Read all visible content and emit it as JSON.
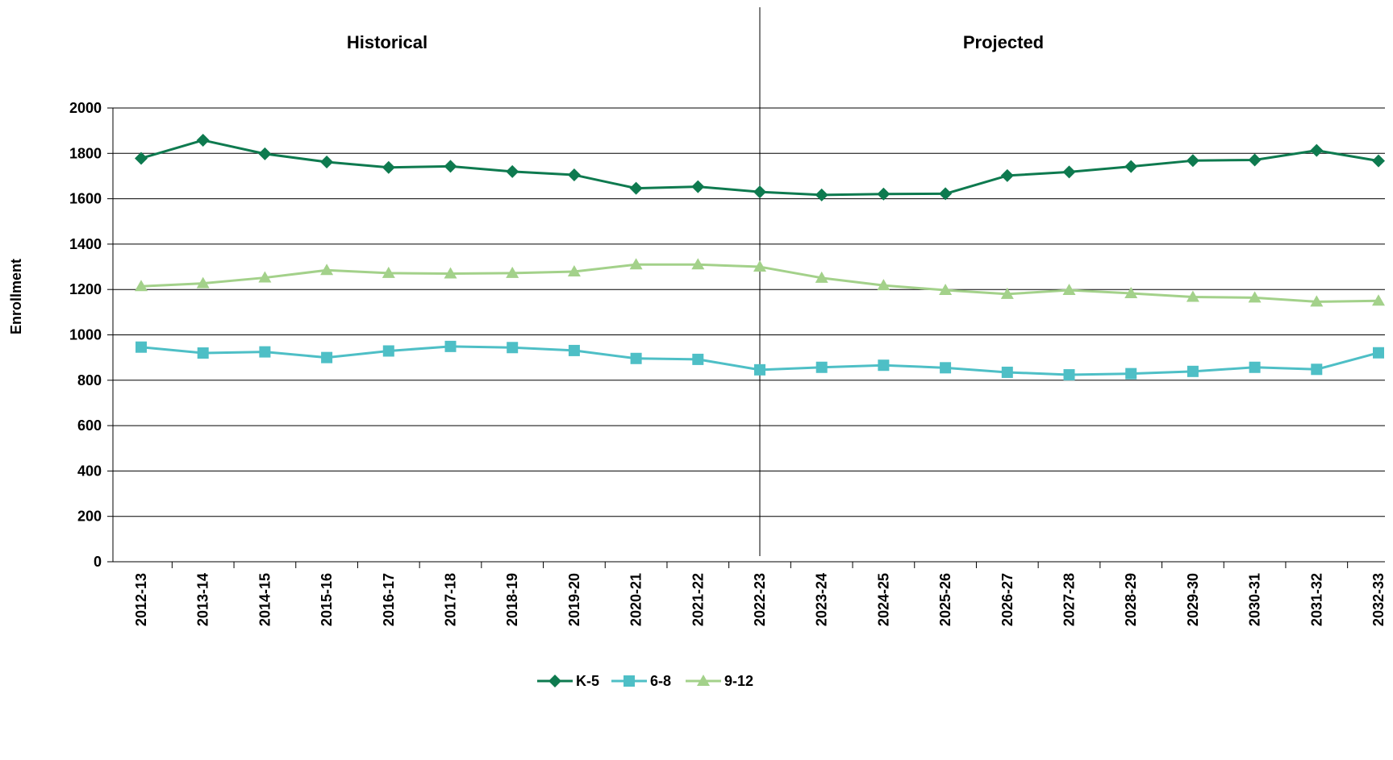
{
  "chart_data": {
    "type": "line",
    "title": "",
    "xlabel": "",
    "ylabel": "Enrollment",
    "ylim": [
      0,
      2000
    ],
    "yticks": [
      0,
      200,
      400,
      600,
      800,
      1000,
      1200,
      1400,
      1600,
      1800,
      2000
    ],
    "grid": true,
    "legend_position": "bottom",
    "categories": [
      "2012-13",
      "2013-14",
      "2014-15",
      "2015-16",
      "2016-17",
      "2017-18",
      "2018-19",
      "2019-20",
      "2020-21",
      "2021-22",
      "2022-23",
      "2023-24",
      "2024-25",
      "2025-26",
      "2026-27",
      "2027-28",
      "2028-29",
      "2029-30",
      "2030-31",
      "2031-32",
      "2032-33"
    ],
    "divider_category": "2022-23",
    "sections": {
      "left": "Historical",
      "right": "Projected"
    },
    "series": [
      {
        "name": "K-5",
        "color": "#0e7a4f",
        "marker": "diamond",
        "values": [
          1778,
          1858,
          1798,
          1762,
          1738,
          1743,
          1720,
          1705,
          1646,
          1653,
          1630,
          1617,
          1621,
          1622,
          1702,
          1718,
          1742,
          1768,
          1771,
          1813,
          1767
        ]
      },
      {
        "name": "6-8",
        "color": "#4ebfc6",
        "marker": "square",
        "values": [
          946,
          920,
          925,
          900,
          929,
          949,
          944,
          931,
          896,
          892,
          846,
          857,
          866,
          855,
          835,
          824,
          829,
          839,
          857,
          848,
          921
        ]
      },
      {
        "name": "9-12",
        "color": "#a3d18a",
        "marker": "triangle",
        "values": [
          1214,
          1227,
          1252,
          1285,
          1272,
          1270,
          1272,
          1279,
          1310,
          1310,
          1300,
          1251,
          1218,
          1197,
          1180,
          1197,
          1183,
          1167,
          1164,
          1146,
          1150
        ]
      }
    ]
  }
}
